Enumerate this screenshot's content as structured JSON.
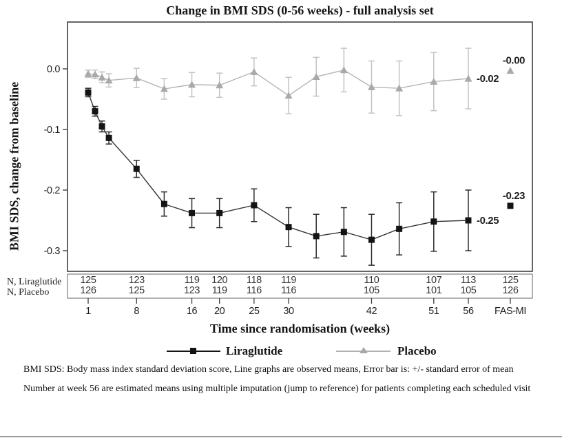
{
  "title": "Change in BMI SDS (0-56 weeks) - full analysis set",
  "y_axis_label": "BMI SDS, change from baseline",
  "x_axis_label": "Time since randomisation (weeks)",
  "legend": {
    "liraglutide": "Liraglutide",
    "placebo": "Placebo"
  },
  "n_table": {
    "row1_label": "N, Liraglutide",
    "row2_label": "N, Placebo"
  },
  "footnotes": {
    "note1": "BMI SDS: Body mass index standard deviation score, Line graphs are observed means, Error bar is: +/- standard error of mean",
    "note2": "Number at week 56 are estimated means using multiple imputation (jump to reference) for patients completing each scheduled visit"
  },
  "chart_data": {
    "type": "line",
    "title": "Change in BMI SDS (0-56 weeks) - full analysis set",
    "xlabel": "Time since randomisation (weeks)",
    "ylabel": "BMI SDS, change from baseline",
    "ylim": [
      -0.334,
      0.077
    ],
    "grid": false,
    "legend_position": "bottom",
    "error_bars": "+/- standard error of mean",
    "y_ticks": [
      {
        "label": "0.0",
        "value": 0
      },
      {
        "label": "-0.1",
        "value": -0.1
      },
      {
        "label": "-0.2",
        "value": -0.2
      },
      {
        "label": "-0.3",
        "value": -0.3
      }
    ],
    "x_tick_weeks": [
      1,
      8,
      16,
      20,
      25,
      30,
      42,
      51,
      56
    ],
    "fas_mi_label": "FAS-MI",
    "colors": {
      "frame": "#3f3f3f",
      "tick_text": "#1f1f1f",
      "n_text": "#353535",
      "liraglutide": "#141414",
      "liraglutide_line": "#333333",
      "liraglutide_err": "#2b2b2b",
      "placebo": "#a9a9a9",
      "placebo_line": "#b5b5b5",
      "placebo_err": "#c3c3c3"
    },
    "series": [
      {
        "name": "Placebo",
        "marker": "triangle",
        "x": [
          1,
          2,
          3,
          4,
          8,
          12,
          16,
          20,
          25,
          30,
          34,
          38,
          42,
          46,
          51,
          56
        ],
        "y": [
          -0.008,
          -0.009,
          -0.014,
          -0.019,
          -0.015,
          -0.033,
          -0.026,
          -0.027,
          -0.005,
          -0.044,
          -0.013,
          -0.002,
          -0.03,
          -0.032,
          -0.021,
          -0.016
        ],
        "sem": [
          0.006,
          0.007,
          0.009,
          0.011,
          0.016,
          0.017,
          0.02,
          0.02,
          0.023,
          0.03,
          0.032,
          0.036,
          0.043,
          0.045,
          0.048,
          0.05
        ],
        "end_label": "-0.02",
        "fas_mi_value": -0.003,
        "fas_mi_point_label": "-0.00"
      },
      {
        "name": "Liraglutide",
        "marker": "square",
        "x": [
          1,
          2,
          3,
          4,
          8,
          12,
          16,
          20,
          25,
          30,
          34,
          38,
          42,
          46,
          51,
          56
        ],
        "y": [
          -0.039,
          -0.07,
          -0.095,
          -0.114,
          -0.165,
          -0.223,
          -0.238,
          -0.238,
          -0.225,
          -0.261,
          -0.276,
          -0.269,
          -0.282,
          -0.264,
          -0.252,
          -0.25
        ],
        "sem": [
          0.007,
          0.008,
          0.009,
          0.01,
          0.014,
          0.02,
          0.024,
          0.024,
          0.027,
          0.032,
          0.036,
          0.04,
          0.042,
          0.043,
          0.049,
          0.05
        ],
        "end_label": "-0.25",
        "fas_mi_value": -0.226,
        "fas_mi_point_label": "-0.23"
      }
    ],
    "n_values": {
      "liraglutide": [
        "125",
        "123",
        "119",
        "120",
        "118",
        "119",
        "110",
        "107",
        "113",
        "125"
      ],
      "placebo": [
        "126",
        "125",
        "123",
        "119",
        "116",
        "116",
        "105",
        "101",
        "105",
        "126"
      ]
    }
  }
}
